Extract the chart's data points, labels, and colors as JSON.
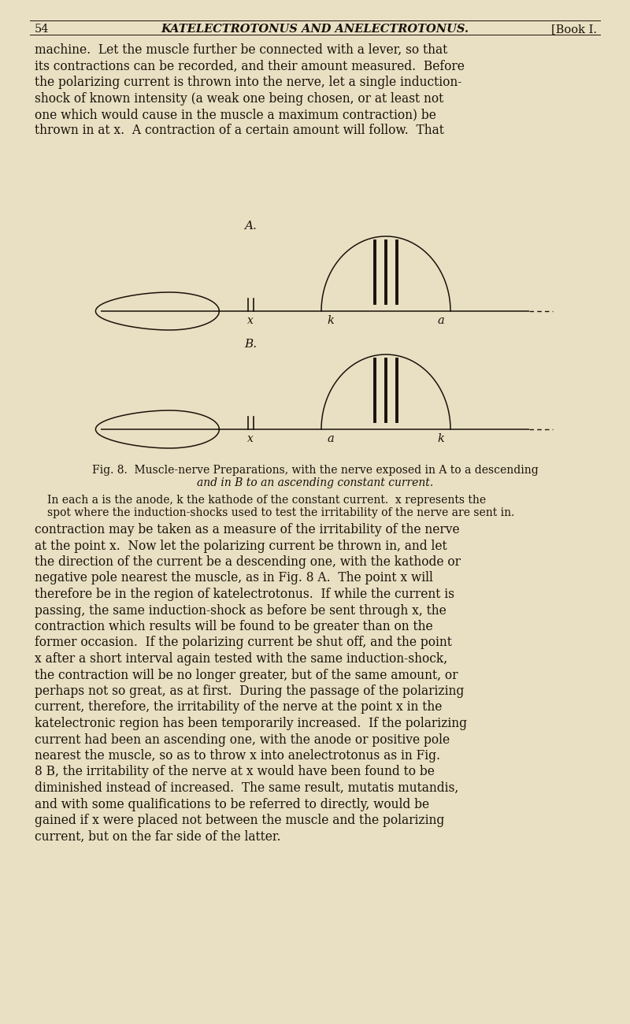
{
  "bg_color": "#e9e0c4",
  "text_color": "#1a1208",
  "page_number": "54",
  "header_title": "KATELECTROTONUS AND ANELECTROTONUS.",
  "header_right": "[Book I.",
  "para1_lines": [
    "machine.  Let the muscle further be connected with a lever, so that",
    "its contractions can be recorded, and their amount measured.  Before",
    "the polarizing current is thrown into the nerve, let a single induction-",
    "shock of known intensity (a weak one being chosen, or at least not",
    "one which would cause in the muscle a maximum contraction) be",
    "thrown in at x.  A contraction of a certain amount will follow.  That"
  ],
  "para2_lines": [
    "contraction may be taken as a measure of the irritability of the nerve",
    "at the point x.  Now let the polarizing current be thrown in, and let",
    "the direction of the current be a descending one, with the kathode or",
    "negative pole nearest the muscle, as in Fig. 8 A.  The point x will",
    "therefore be in the region of katelectrotonus.  If while the current is",
    "passing, the same induction-shock as before be sent through x, the",
    "contraction which results will be found to be greater than on the",
    "former occasion.  If the polarizing current be shut off, and the point",
    "x after a short interval again tested with the same induction-shock,",
    "the contraction will be no longer greater, but of the same amount, or",
    "perhaps not so great, as at first.  During the passage of the polarizing",
    "current, therefore, the irritability of the nerve at the point x in the",
    "katelectronic region has been temporarily increased.  If the polarizing",
    "current had been an ascending one, with the anode or positive pole",
    "nearest the muscle, so as to throw x into anelectrotonus as in Fig.",
    "8 B, the irritability of the nerve at x would have been found to be",
    "diminished instead of increased.  The same result, mutatis mutandis,",
    "and with some qualifications to be referred to directly, would be",
    "gained if x were placed not between the muscle and the polarizing",
    "current, but on the far side of the latter."
  ]
}
